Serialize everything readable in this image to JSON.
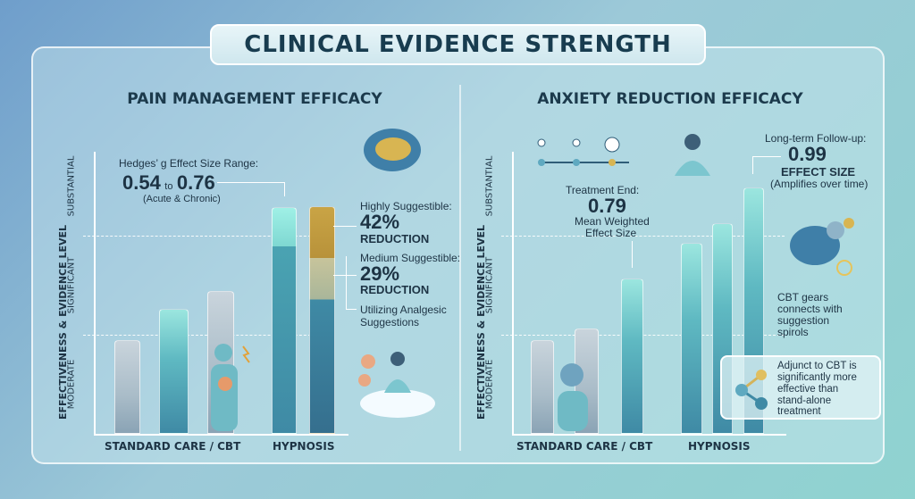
{
  "title": "CLINICAL EVIDENCE STRENGTH",
  "colors": {
    "bar_grey": "#a9bcc8",
    "bar_teal": "#5fb9c2",
    "bar_dark": "#3f8aa5",
    "bar_gold": "#c9a445",
    "bar_light_gold": "#c7c49b",
    "highlight": "#9ff0e6"
  },
  "y_axis_label": "EFFECTIVENESS & EVIDENCE LEVEL",
  "levels": [
    "MODERATE",
    "SIGNIFICANT",
    "SUBSTANTIAL"
  ],
  "left": {
    "heading": "PAIN MANAGEMENT EFFICACY",
    "x_labels": [
      "STANDARD CARE / CBT",
      "HYPNOSIS"
    ],
    "effect_label": "Hedges’ g Effect Size Range:",
    "effect_low": "0.54",
    "effect_to": "to",
    "effect_high": "0.76",
    "effect_note": "(Acute & Chronic)",
    "high_label": "Highly Suggestible:",
    "high_value": "42%",
    "high_unit": "REDUCTION",
    "med_label": "Medium Suggestible:",
    "med_value": "29%",
    "med_unit": "REDUCTION",
    "analgesic_1": "Utilizing Analgesic",
    "analgesic_2": "Suggestions"
  },
  "right": {
    "heading": "ANXIETY REDUCTION EFFICACY",
    "x_labels": [
      "STANDARD CARE / CBT",
      "HYPNOSIS"
    ],
    "end_label": "Treatment End:",
    "end_value": "0.79",
    "end_note_1": "Mean Weighted",
    "end_note_2": "Effect Size",
    "follow_label": "Long-term Follow-up:",
    "follow_value": "0.99",
    "follow_unit": "EFFECT SIZE",
    "follow_note": "(Amplifies over time)",
    "gears_1": "CBT gears",
    "gears_2": "connects with",
    "gears_3": "suggestion",
    "gears_4": "spirols",
    "note_1": "Adjunct to CBT is",
    "note_2": "significantly more",
    "note_3": "effective than",
    "note_4": "stand-alone",
    "note_5": "treatment"
  },
  "chart_data": [
    {
      "type": "bar",
      "title": "PAIN MANAGEMENT EFFICACY",
      "ylabel": "EFFECTIVENESS & EVIDENCE LEVEL",
      "y_levels": [
        "MODERATE",
        "SIGNIFICANT",
        "SUBSTANTIAL"
      ],
      "ylim": [
        0,
        3
      ],
      "grid": "dashed level lines",
      "groups": [
        "STANDARD CARE / CBT",
        "HYPNOSIS"
      ],
      "bars": [
        {
          "group": "STANDARD CARE / CBT",
          "value": 0.95,
          "color": "grey"
        },
        {
          "group": "STANDARD CARE / CBT",
          "value": 1.26,
          "color": "teal"
        },
        {
          "group": "STANDARD CARE / CBT",
          "value": 1.44,
          "color": "grey"
        },
        {
          "group": "HYPNOSIS",
          "value": 2.29,
          "color": "teal",
          "highlight_from": 1.9
        },
        {
          "group": "HYPNOSIS",
          "value": 2.3,
          "color": "stacked",
          "segments": [
            {
              "name": "base",
              "to": 1.36
            },
            {
              "name": "Medium Suggestible: 29% REDUCTION",
              "to": 1.78
            },
            {
              "name": "Highly Suggestible: 42% REDUCTION",
              "to": 2.3
            }
          ]
        }
      ],
      "annotations": [
        "Hedges’ g Effect Size Range: 0.54 to 0.76 (Acute & Chronic)",
        "Highly Suggestible: 42% REDUCTION",
        "Medium Suggestible: 29% REDUCTION",
        "Utilizing Analgesic Suggestions"
      ]
    },
    {
      "type": "bar",
      "title": "ANXIETY REDUCTION EFFICACY",
      "ylabel": "EFFECTIVENESS & EVIDENCE LEVEL",
      "y_levels": [
        "MODERATE",
        "SIGNIFICANT",
        "SUBSTANTIAL"
      ],
      "ylim": [
        0,
        3
      ],
      "grid": "dashed level lines",
      "groups": [
        "STANDARD CARE / CBT",
        "HYPNOSIS"
      ],
      "bars": [
        {
          "group": "STANDARD CARE / CBT",
          "value": 0.95,
          "color": "grey"
        },
        {
          "group": "STANDARD CARE / CBT",
          "value": 1.06,
          "color": "grey"
        },
        {
          "group": "STANDARD CARE / CBT",
          "value": 1.57,
          "color": "teal"
        },
        {
          "group": "HYPNOSIS",
          "value": 1.93,
          "color": "teal"
        },
        {
          "group": "HYPNOSIS",
          "value": 2.13,
          "color": "teal"
        },
        {
          "group": "HYPNOSIS",
          "value": 2.49,
          "color": "teal"
        }
      ],
      "annotations": [
        "Treatment End: 0.79 Mean Weighted Effect Size",
        "Long-term Follow-up: 0.99 EFFECT SIZE (Amplifies over time)"
      ]
    }
  ]
}
